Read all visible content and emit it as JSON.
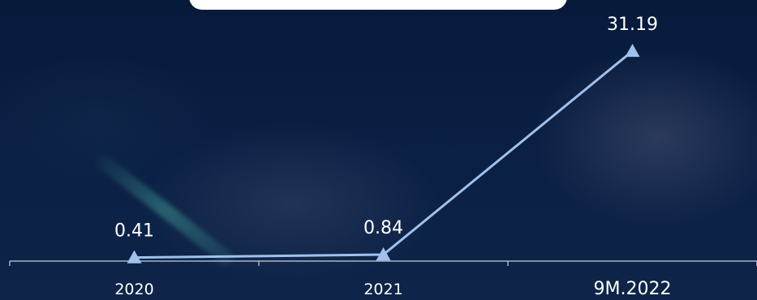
{
  "chart_data": {
    "type": "line",
    "categories": [
      "2020",
      "2021",
      "9M.2022"
    ],
    "values": [
      0.41,
      0.84,
      31.19
    ],
    "data_labels": [
      "0.41",
      "0.84",
      "31.19"
    ],
    "marker": "triangle",
    "line_color": "#9fc1ec",
    "label_color": "#ffffff",
    "axis_color": "#c8d2e0"
  }
}
